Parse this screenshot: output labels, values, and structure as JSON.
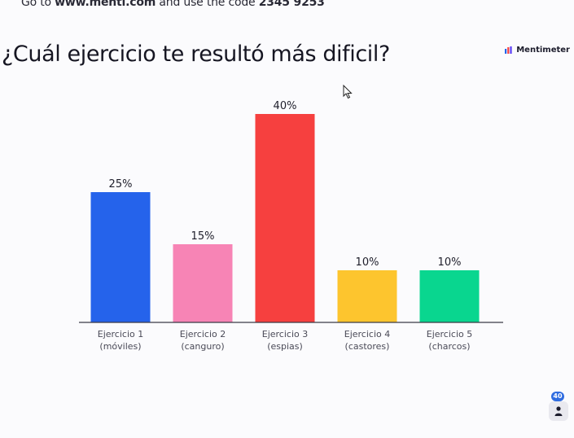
{
  "header": {
    "join_prefix": "Go to ",
    "join_url": "www.menti.com",
    "join_middle": " and use the code ",
    "join_code": "2345 9253"
  },
  "question": "¿Cuál ejercicio te resultó más dificil?",
  "brand": {
    "name": "Mentimeter",
    "logo_icon": "mentimeter-logo-icon"
  },
  "participants": {
    "count": "40",
    "icon": "person-icon"
  },
  "chart_data": {
    "type": "bar",
    "categories": [
      [
        "Ejercicio 1",
        "(móviles)"
      ],
      [
        "Ejercicio 2",
        "(canguro)"
      ],
      [
        "Ejercicio 3",
        "(espias)"
      ],
      [
        "Ejercicio 4",
        "(castores)"
      ],
      [
        "Ejercicio 5",
        "(charcos)"
      ]
    ],
    "values": [
      25,
      15,
      40,
      10,
      10
    ],
    "value_labels": [
      "25%",
      "15%",
      "40%",
      "10%",
      "10%"
    ],
    "colors": [
      "#2563eb",
      "#f784b5",
      "#f6403f",
      "#fdc52e",
      "#09d68f"
    ],
    "ylim": [
      0,
      40
    ],
    "grid": false,
    "legend": "none"
  }
}
